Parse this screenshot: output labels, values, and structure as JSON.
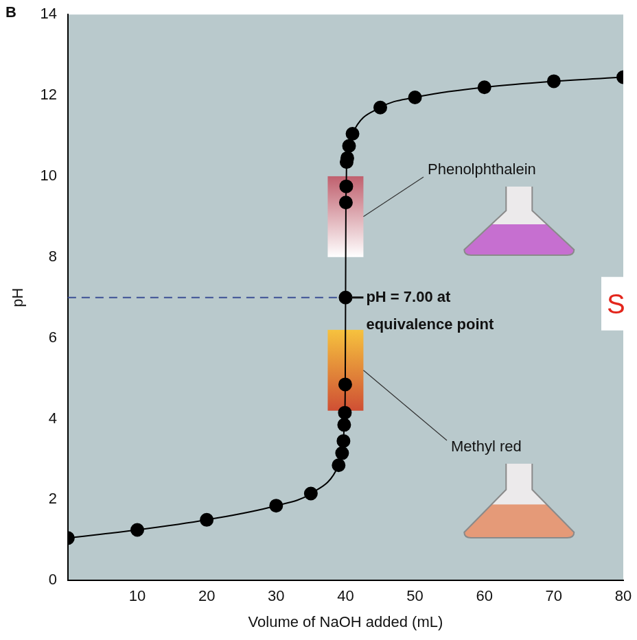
{
  "chart_data": {
    "type": "scatter",
    "panel_label": "B",
    "x_label": "Volume of NaOH added (mL)",
    "y_label": "pH",
    "xlim": [
      0,
      80
    ],
    "xticks": [
      10,
      20,
      30,
      40,
      50,
      60,
      70,
      80
    ],
    "ylim": [
      0,
      14
    ],
    "yticks": [
      0,
      2,
      4,
      6,
      8,
      10,
      12,
      14
    ],
    "grid": false,
    "series": [
      {
        "color": "#000000",
        "marker": "circle",
        "line_style": "solid",
        "x": [
          0,
          10,
          20,
          30,
          35,
          39,
          39.5,
          39.7,
          39.8,
          39.9,
          39.95,
          40,
          40.05,
          40.1,
          40.15,
          40.25,
          40.5,
          41,
          45,
          50,
          60,
          70,
          80
        ],
        "values": [
          1.05,
          1.25,
          1.5,
          1.85,
          2.15,
          2.85,
          3.15,
          3.45,
          3.85,
          4.15,
          4.85,
          7.0,
          9.35,
          9.75,
          10.35,
          10.45,
          10.75,
          11.05,
          11.7,
          11.95,
          12.2,
          12.35,
          12.45
        ]
      }
    ],
    "reference_line": {
      "y": 7,
      "x_end": 40,
      "color": "#3b4f94",
      "line_style": "dashed"
    },
    "annotations": [
      {
        "text": [
          "pH = 7.00 at",
          "equivalence point"
        ],
        "x": 40,
        "y": 7,
        "color": "#111111"
      },
      {
        "text": [
          "S"
        ],
        "color": "#e3261c"
      }
    ],
    "indicators": [
      {
        "name": "Phenolphthalein",
        "ymin": 8,
        "ymax": 10,
        "colors": [
          "#ffffff",
          "#c0606e"
        ],
        "flask_color": "#c66fd0"
      },
      {
        "name": "Methyl red",
        "ymin": 4.2,
        "ymax": 6.2,
        "colors": [
          "#cf4f34",
          "#f6c23e"
        ],
        "flask_color": "#e59a78"
      }
    ]
  }
}
